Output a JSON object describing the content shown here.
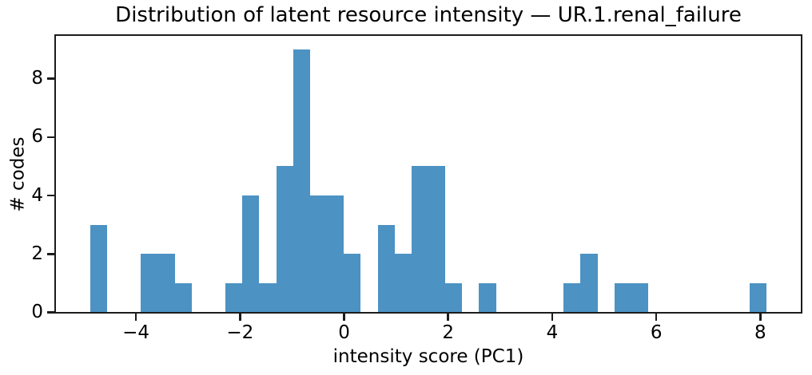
{
  "chart_data": {
    "type": "bar",
    "subtype": "histogram",
    "title": "Distribution of latent resource intensity — UR.1.renal_failure",
    "xlabel": "intensity score (PC1)",
    "ylabel": "# codes",
    "bin_start": -4.88,
    "bin_width": 0.325,
    "counts": [
      3,
      0,
      0,
      2,
      2,
      1,
      0,
      0,
      1,
      4,
      1,
      5,
      9,
      4,
      4,
      2,
      0,
      3,
      2,
      5,
      5,
      1,
      0,
      1,
      0,
      0,
      0,
      0,
      1,
      2,
      0,
      1,
      1,
      0,
      0,
      0,
      0,
      0,
      0,
      1
    ],
    "total_codes": 61,
    "xlim": [
      -5.53,
      8.77
    ],
    "ylim": [
      0,
      9.45
    ],
    "xticks": {
      "values": [
        -4,
        -2,
        0,
        2,
        4,
        6,
        8
      ],
      "labels": [
        "−4",
        "−2",
        "0",
        "2",
        "4",
        "6",
        "8"
      ]
    },
    "yticks": {
      "values": [
        0,
        2,
        4,
        6,
        8
      ],
      "labels": [
        "0",
        "2",
        "4",
        "6",
        "8"
      ]
    },
    "colors": {
      "bar": "#4C92C3",
      "axis": "#1c1c1c",
      "text": "#000000",
      "background": "#ffffff"
    },
    "grid": false,
    "legend": false
  }
}
